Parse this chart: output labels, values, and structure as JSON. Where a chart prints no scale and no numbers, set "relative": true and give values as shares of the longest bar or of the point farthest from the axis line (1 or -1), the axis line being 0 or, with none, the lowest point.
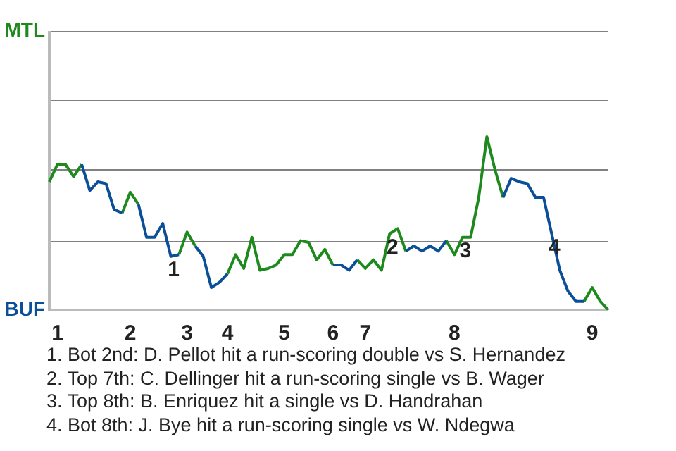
{
  "chart_data": {
    "type": "line",
    "relative": true,
    "categories": [
      null,
      "1",
      null,
      null,
      null,
      null,
      null,
      null,
      null,
      null,
      "2",
      null,
      null,
      null,
      null,
      null,
      null,
      "3",
      null,
      null,
      null,
      null,
      "4",
      null,
      null,
      null,
      null,
      null,
      null,
      "5",
      null,
      null,
      null,
      null,
      null,
      "6",
      null,
      null,
      null,
      "7",
      null,
      null,
      null,
      null,
      null,
      null,
      null,
      null,
      null,
      null,
      "8",
      null,
      null,
      null,
      null,
      null,
      null,
      null,
      null,
      null,
      null,
      null,
      null,
      null,
      null,
      null,
      null,
      "9",
      null,
      null
    ],
    "series": [
      {
        "name": "MTL",
        "color": "#1e8a1e",
        "values": [
          0.74,
          0.84,
          0.84,
          0.77,
          0.84,
          null,
          null,
          null,
          null,
          0.56,
          0.68,
          0.61,
          null,
          null,
          null,
          null,
          0.32,
          0.45,
          0.37,
          null,
          null,
          null,
          0.21,
          0.32,
          0.24,
          0.42,
          0.23,
          0.24,
          0.26,
          0.32,
          0.32,
          0.4,
          0.39,
          0.29,
          0.35,
          0.26,
          null,
          null,
          0.29,
          0.24,
          0.29,
          0.23,
          0.44,
          0.47,
          0.34,
          null,
          null,
          null,
          null,
          0.4,
          0.32,
          0.42,
          0.42,
          0.65,
          1,
          0.81,
          0.65,
          null,
          null,
          null,
          null,
          null,
          null,
          null,
          null,
          null,
          0.05,
          0.13,
          0.05,
          0
        ]
      },
      {
        "name": "BUF",
        "color": "#0b4f99",
        "values": [
          null,
          null,
          null,
          null,
          0.84,
          0.69,
          0.74,
          0.73,
          0.58,
          0.56,
          null,
          0.61,
          0.42,
          0.42,
          0.5,
          0.31,
          0.32,
          null,
          0.37,
          0.31,
          0.13,
          0.16,
          0.21,
          null,
          null,
          null,
          null,
          null,
          null,
          null,
          null,
          null,
          null,
          null,
          null,
          0.26,
          0.26,
          0.23,
          0.29,
          null,
          null,
          null,
          null,
          null,
          0.34,
          0.37,
          0.34,
          0.37,
          0.34,
          0.4,
          null,
          null,
          null,
          null,
          null,
          null,
          0.65,
          0.76,
          0.74,
          0.73,
          0.65,
          0.65,
          0.44,
          0.23,
          0.11,
          0.05,
          0.05,
          null,
          null,
          null
        ]
      }
    ],
    "legend": "left",
    "marker": "none",
    "ref_lines": [
      {
        "axis": "y",
        "value": 0.4,
        "color": "#808080"
      },
      {
        "axis": "y",
        "value": 0.81,
        "color": "#808080"
      },
      {
        "axis": "y",
        "value": 1.21,
        "color": "#808080"
      },
      {
        "axis": "y",
        "value": 1.61,
        "color": "#808080"
      }
    ],
    "annotations": [
      {
        "text": "1",
        "y": 0.31
      },
      {
        "text": "2",
        "y": 0.44
      },
      {
        "text": "3",
        "y": 0.42
      },
      {
        "text": "4",
        "y": 0.44
      },
      "1. Bot 2nd: D. Pellot hit a run-scoring double vs S. Hernandez",
      "2. Top 7th: C. Dellinger hit a run-scoring single vs B. Wager",
      "3. Top 8th: B. Enriquez hit a single vs D. Handrahan",
      "4. Bot 8th: J. Bye hit a run-scoring single vs W. Ndegwa"
    ]
  }
}
